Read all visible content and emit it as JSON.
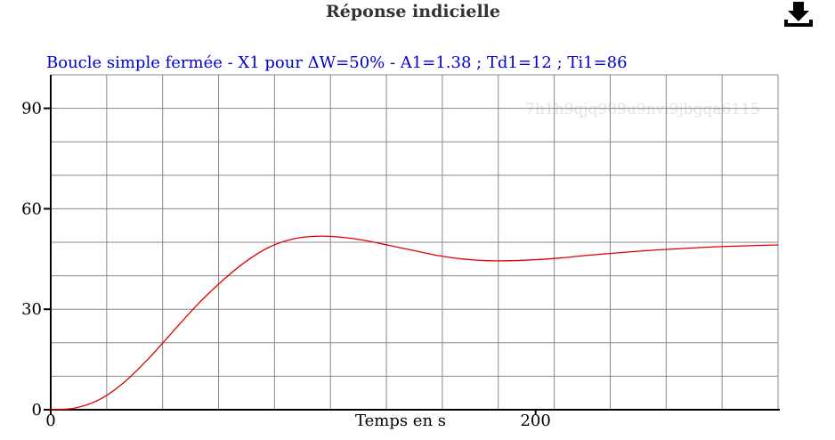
{
  "header": {
    "title": "Réponse indicielle",
    "download_icon": "download-icon"
  },
  "watermark": "7h1h9qjq989u9nvi9jbgqa6115",
  "colors": {
    "series": "#e00000",
    "subtitle": "#0000cc",
    "grid": "#888888",
    "axis": "#000000"
  },
  "chart_data": {
    "type": "line",
    "title": "Boucle simple fermée - X1 pour ΔW=50% - A1=1.38 ; Td1=12 ; Ti1=86",
    "xlabel": "Temps en s",
    "ylabel": "",
    "xlim": [
      0,
      300
    ],
    "ylim": [
      0,
      100
    ],
    "x_ticks": [
      0,
      200
    ],
    "y_ticks": [
      0,
      30,
      60,
      90
    ],
    "grid": true,
    "series": [
      {
        "color": "#e00000",
        "x": [
          0,
          10,
          20,
          30,
          40,
          50,
          60,
          70,
          80,
          90,
          100,
          110,
          120,
          130,
          140,
          150,
          160,
          170,
          180,
          190,
          200,
          210,
          220,
          230,
          240,
          250,
          260,
          270,
          280,
          290,
          300
        ],
        "y": [
          0,
          0.5,
          3,
          8,
          15,
          23,
          31,
          38,
          44,
          48.5,
          51,
          51.8,
          51.5,
          50.5,
          49,
          47.5,
          46,
          45,
          44.5,
          44.5,
          44.8,
          45.3,
          46,
          46.6,
          47.2,
          47.7,
          48.1,
          48.5,
          48.8,
          49,
          49.2
        ]
      }
    ]
  }
}
